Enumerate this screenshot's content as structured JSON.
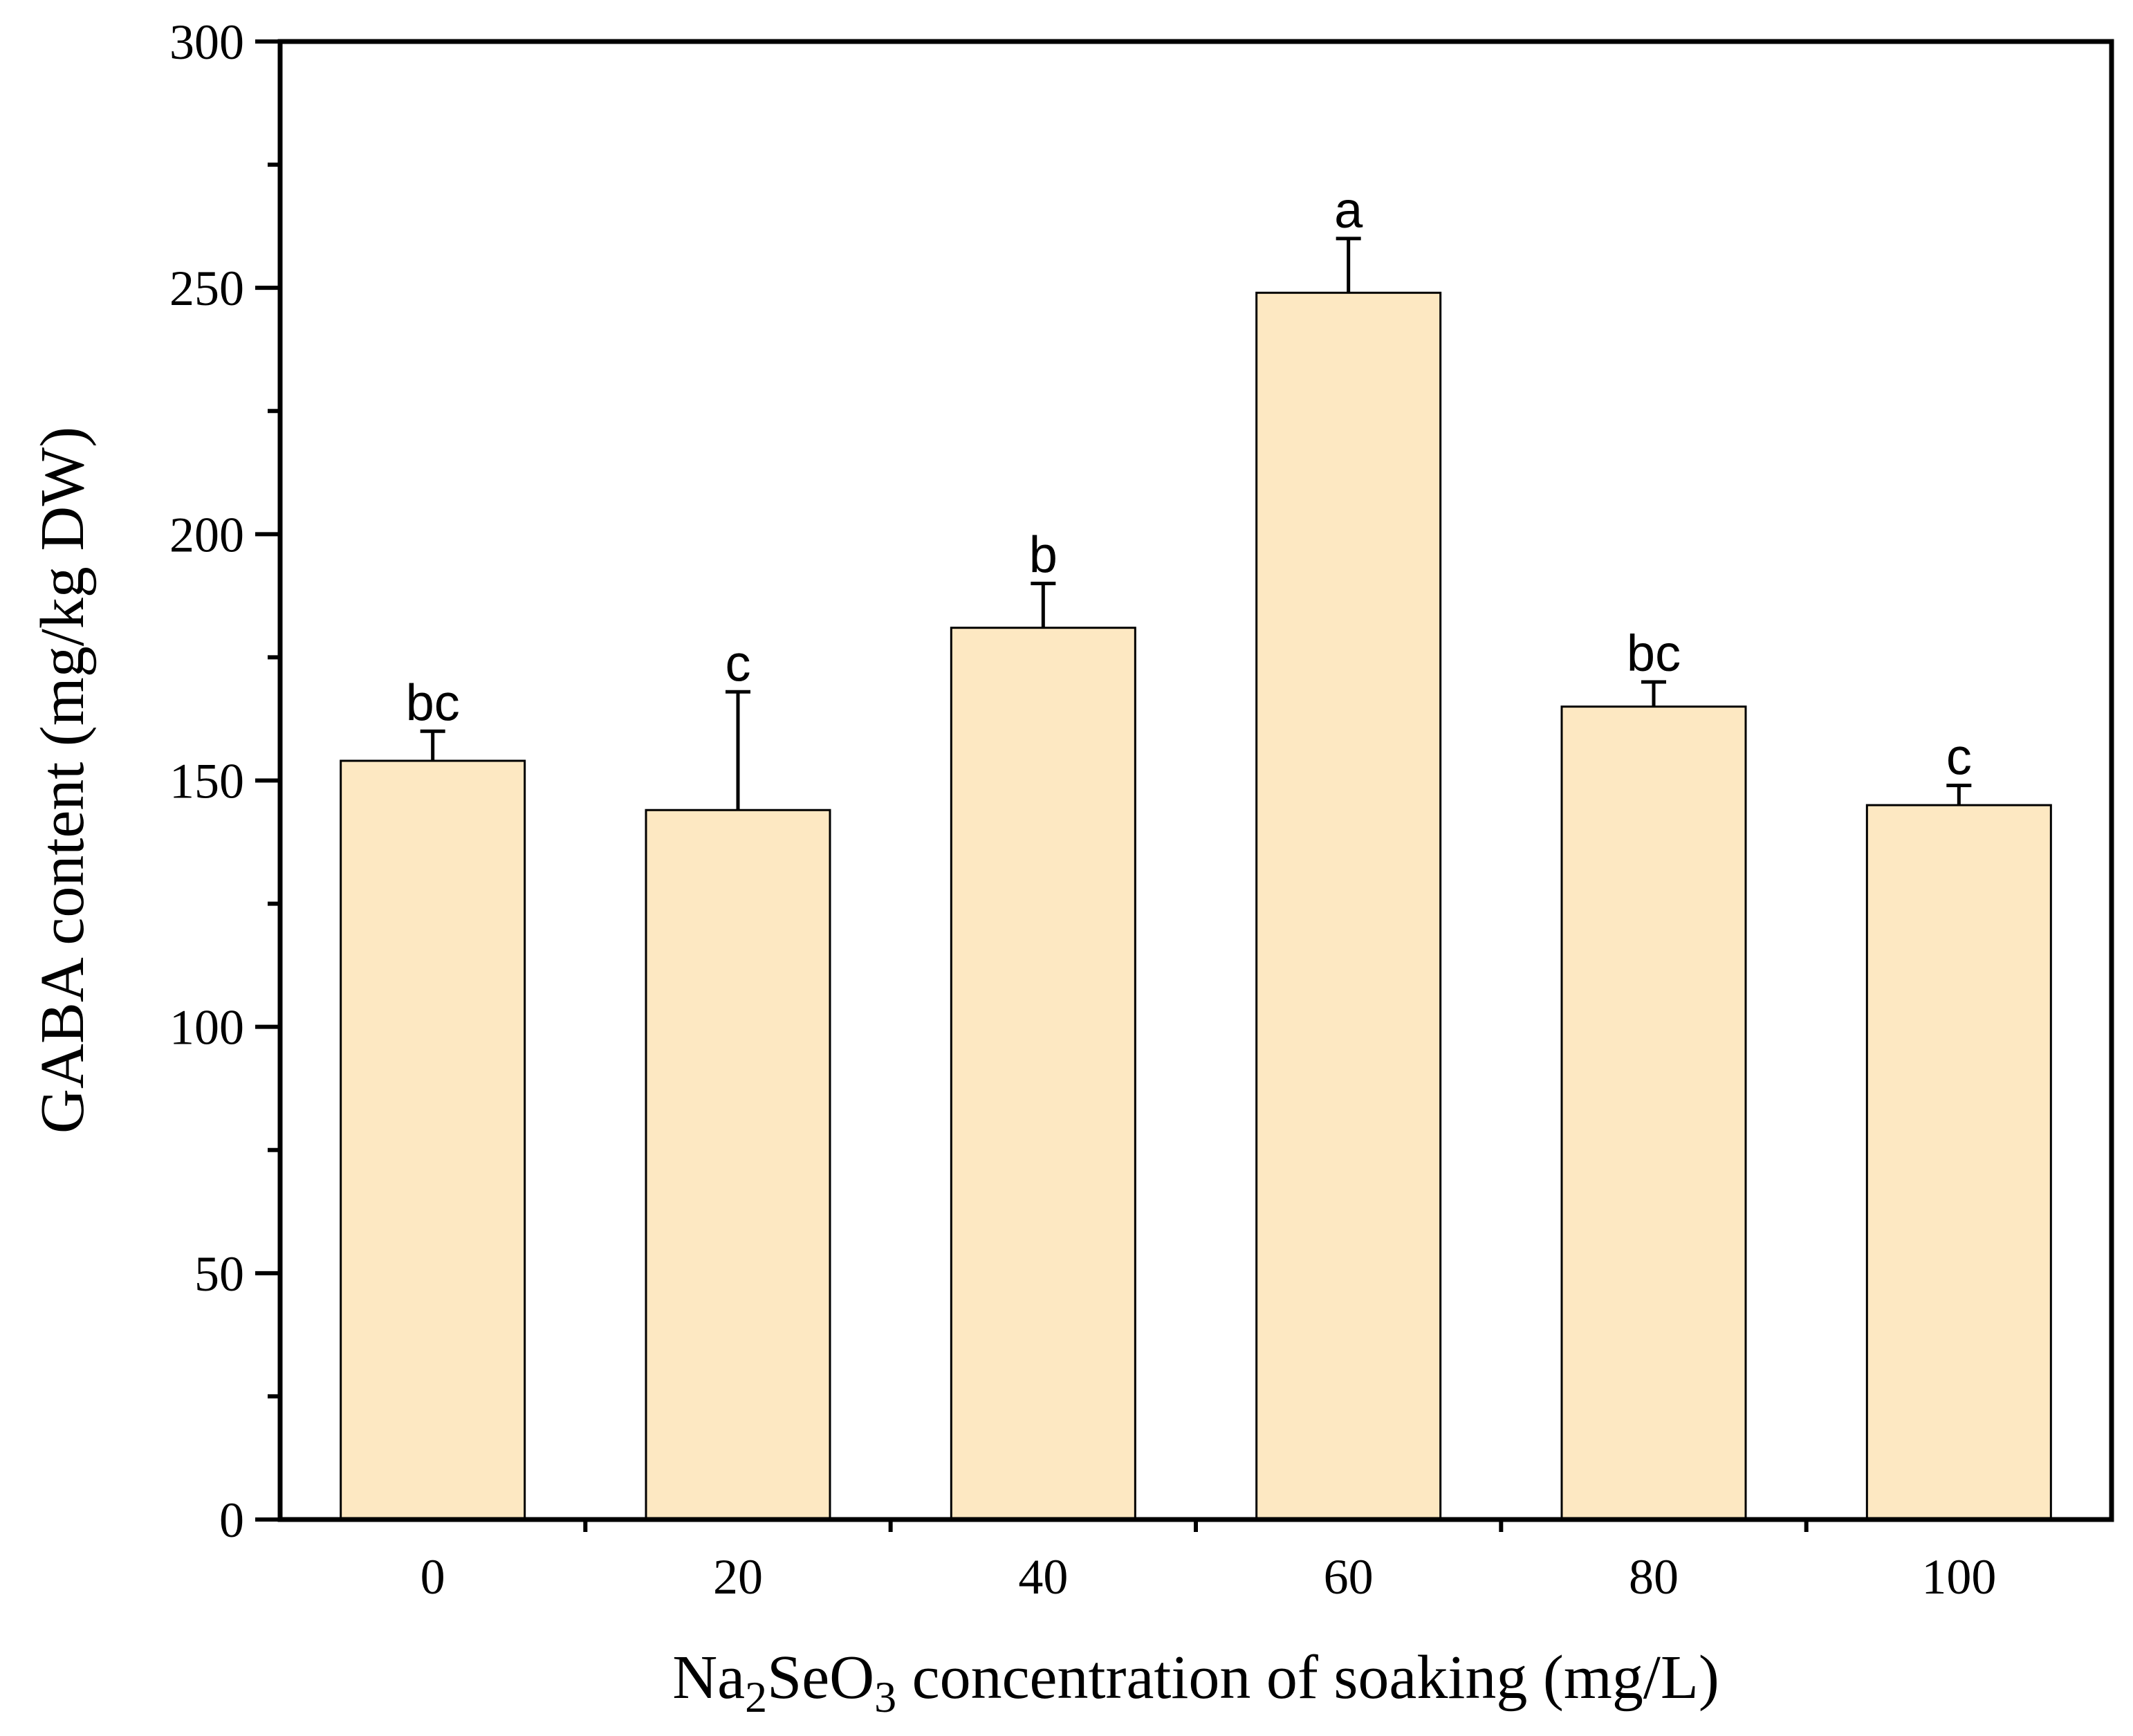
{
  "chart_data": {
    "type": "bar",
    "title": "",
    "categories": [
      "0",
      "20",
      "40",
      "60",
      "80",
      "100"
    ],
    "values": [
      154,
      144,
      181,
      249,
      165,
      145
    ],
    "error_upper": [
      160,
      168,
      190,
      260,
      170,
      149
    ],
    "significance": [
      "bc",
      "c",
      "b",
      "a",
      "bc",
      "c"
    ],
    "ylim": [
      0,
      300
    ],
    "yticks": [
      "0",
      "50",
      "100",
      "150",
      "200",
      "250",
      "300"
    ],
    "ylabel": "GABA content (mg/kg DW)",
    "xlabel": {
      "prefix": "Na",
      "sub1": "2",
      "mid": "SeO",
      "sub2": "3",
      "suffix": " concentration of soaking (mg/L)"
    },
    "bar_color": "#fde8c2",
    "grid": false
  }
}
